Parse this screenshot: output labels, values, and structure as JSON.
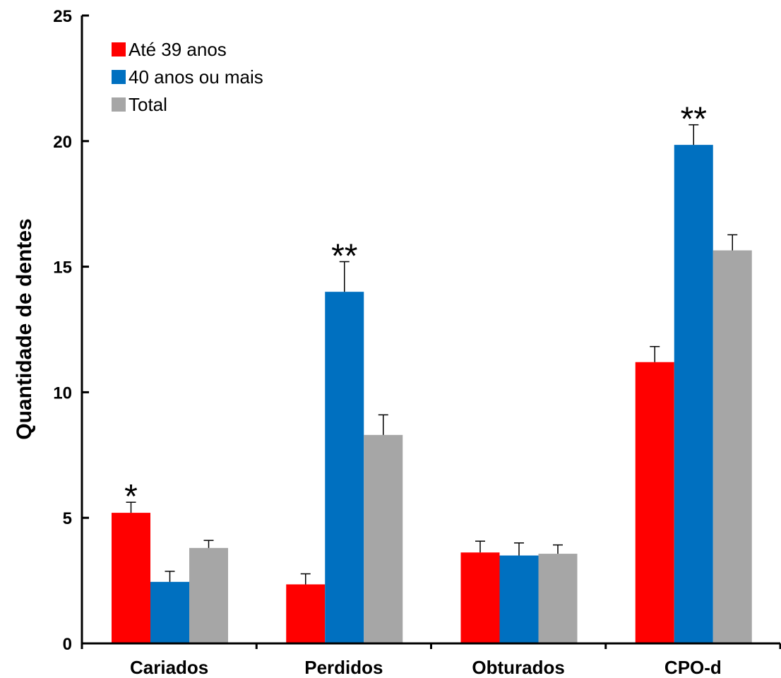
{
  "chart_data": {
    "type": "bar",
    "ylabel": "Quantidade de dentes",
    "xlabel": "",
    "ylim": [
      0,
      25
    ],
    "yticks": [
      0,
      5,
      10,
      15,
      20,
      25
    ],
    "categories": [
      "Cariados",
      "Perdidos",
      "Obturados",
      "CPO-d"
    ],
    "series": [
      {
        "name": "Até 39 anos",
        "color": "#ff0000",
        "values": [
          5.2,
          2.35,
          3.62,
          11.2
        ],
        "errors": [
          0.42,
          0.42,
          0.45,
          0.62
        ]
      },
      {
        "name": "40 anos ou mais",
        "color": "#0070c0",
        "values": [
          2.45,
          14.0,
          3.5,
          19.85
        ],
        "errors": [
          0.42,
          1.2,
          0.5,
          0.8
        ]
      },
      {
        "name": "Total",
        "color": "#a6a6a6",
        "values": [
          3.8,
          8.3,
          3.57,
          15.65
        ],
        "errors": [
          0.3,
          0.8,
          0.35,
          0.62
        ]
      }
    ],
    "annotations": [
      {
        "category": 0,
        "series": 0,
        "text": "*"
      },
      {
        "category": 1,
        "series": 1,
        "text": "**"
      },
      {
        "category": 3,
        "series": 1,
        "text": "**"
      }
    ],
    "legend_position": "top-left",
    "grid": false
  }
}
